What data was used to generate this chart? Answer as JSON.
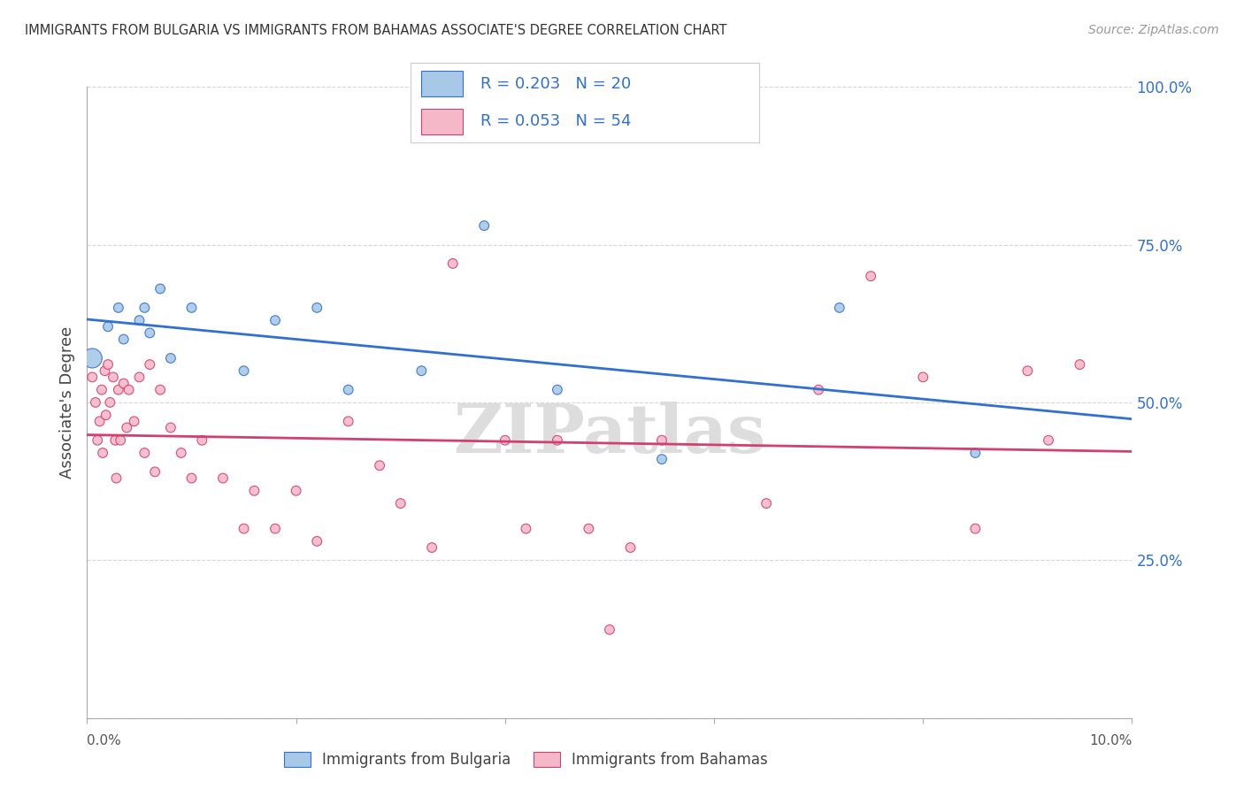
{
  "title": "IMMIGRANTS FROM BULGARIA VS IMMIGRANTS FROM BAHAMAS ASSOCIATE'S DEGREE CORRELATION CHART",
  "source": "Source: ZipAtlas.com",
  "ylabel": "Associate's Degree",
  "xlim": [
    0,
    10
  ],
  "ylim": [
    0,
    100
  ],
  "ytick_vals": [
    0,
    25,
    50,
    75,
    100
  ],
  "color_bulgaria": "#a8c8e8",
  "color_bahamas": "#f4b8c8",
  "line_color_bulgaria": "#3070d0",
  "line_color_bahamas": "#d04070",
  "tick_color": "#3070d0",
  "bg_color": "#ffffff",
  "watermark": "ZIPatlas",
  "title_color": "#333333",
  "source_color": "#999999",
  "legend1_label": "R = 0.203   N = 20",
  "legend2_label": "R = 0.053   N = 54",
  "bottom_legend1": "Immigrants from Bulgaria",
  "bottom_legend2": "Immigrants from Bahamas",
  "bulgaria_x": [
    0.05,
    0.2,
    0.3,
    0.35,
    0.5,
    0.55,
    0.6,
    0.7,
    0.8,
    1.0,
    1.5,
    1.8,
    2.2,
    2.5,
    3.2,
    3.8,
    4.5,
    5.5,
    7.2,
    8.5
  ],
  "bulgaria_y": [
    57,
    62,
    65,
    60,
    63,
    65,
    61,
    68,
    57,
    65,
    55,
    63,
    65,
    52,
    55,
    78,
    52,
    41,
    65,
    42
  ],
  "bulgaria_size": [
    250,
    60,
    60,
    60,
    60,
    60,
    60,
    60,
    60,
    60,
    60,
    60,
    60,
    60,
    60,
    60,
    60,
    60,
    60,
    60
  ],
  "bahamas_x": [
    0.05,
    0.08,
    0.1,
    0.12,
    0.14,
    0.15,
    0.17,
    0.18,
    0.2,
    0.22,
    0.25,
    0.27,
    0.28,
    0.3,
    0.32,
    0.35,
    0.38,
    0.4,
    0.45,
    0.5,
    0.55,
    0.6,
    0.65,
    0.7,
    0.8,
    0.9,
    1.0,
    1.1,
    1.3,
    1.5,
    1.6,
    1.8,
    2.0,
    2.2,
    2.5,
    2.8,
    3.0,
    3.3,
    3.5,
    4.0,
    4.2,
    4.5,
    4.8,
    5.0,
    5.2,
    5.5,
    6.5,
    7.0,
    7.5,
    8.0,
    8.5,
    9.0,
    9.2,
    9.5
  ],
  "bahamas_y": [
    54,
    50,
    44,
    47,
    52,
    42,
    55,
    48,
    56,
    50,
    54,
    44,
    38,
    52,
    44,
    53,
    46,
    52,
    47,
    54,
    42,
    56,
    39,
    52,
    46,
    42,
    38,
    44,
    38,
    30,
    36,
    30,
    36,
    28,
    47,
    40,
    34,
    27,
    72,
    44,
    30,
    44,
    30,
    14,
    27,
    44,
    34,
    52,
    70,
    54,
    30,
    55,
    44,
    56
  ],
  "bahamas_size": [
    60,
    60,
    60,
    60,
    60,
    60,
    60,
    60,
    60,
    60,
    60,
    60,
    60,
    60,
    60,
    60,
    60,
    60,
    60,
    60,
    60,
    60,
    60,
    60,
    60,
    60,
    60,
    60,
    60,
    60,
    60,
    60,
    60,
    60,
    60,
    60,
    60,
    60,
    60,
    60,
    60,
    60,
    60,
    60,
    60,
    60,
    60,
    60,
    60,
    60,
    60,
    60,
    60,
    60
  ]
}
